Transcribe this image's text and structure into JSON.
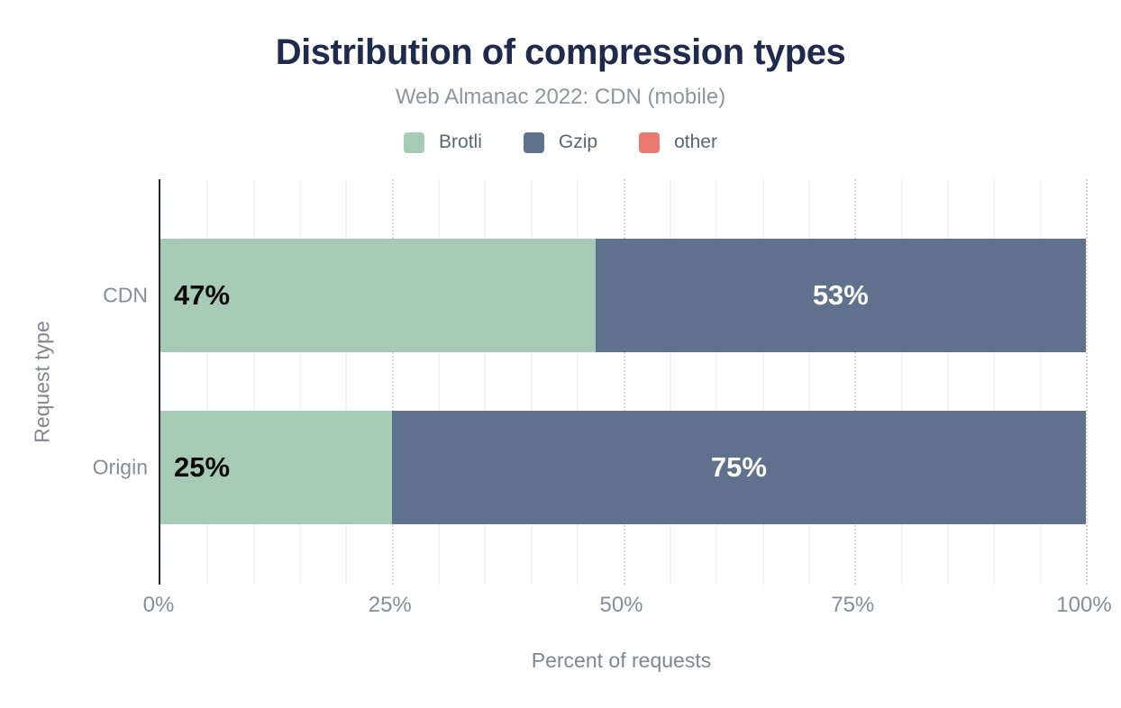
{
  "header": {
    "title": "Distribution of compression types",
    "subtitle": "Web Almanac 2022: CDN (mobile)"
  },
  "colors": {
    "title_text": "#1f2b4c",
    "subtitle_text": "#8e959c",
    "axis_line": "#23282f",
    "tick_label": "#868d96",
    "legend_label": "#5b6572",
    "grid_minor": "#f3f3f3",
    "grid_major": "#dcdcdc",
    "brotli": "#a7cab5",
    "gzip": "#5f718d",
    "other": "#ea7a70"
  },
  "chart_data": {
    "type": "bar",
    "orientation": "horizontal",
    "stacked": true,
    "title": "Distribution of compression types",
    "subtitle": "Web Almanac 2022: CDN (mobile)",
    "categories": [
      "CDN",
      "Origin"
    ],
    "series": [
      {
        "name": "Brotli",
        "color": "#a7cab5",
        "values": [
          47,
          25
        ],
        "labels": [
          "47%",
          "25%"
        ],
        "label_color": "#0b0b0b",
        "label_align": "left"
      },
      {
        "name": "Gzip",
        "color": "#5f718d",
        "values": [
          53,
          75
        ],
        "labels": [
          "53%",
          "75%"
        ],
        "label_color": "#ffffff",
        "label_align": "center"
      },
      {
        "name": "other",
        "color": "#ea7a70",
        "values": [
          0,
          0
        ],
        "labels": [
          "",
          ""
        ],
        "label_color": "#ffffff",
        "label_align": "center"
      }
    ],
    "xlabel": "Percent of requests",
    "ylabel": "Request type",
    "xlim": [
      0,
      100
    ],
    "x_ticks": [
      {
        "label": "0%",
        "value": 0
      },
      {
        "label": "25%",
        "value": 25
      },
      {
        "label": "50%",
        "value": 50
      },
      {
        "label": "75%",
        "value": 75
      },
      {
        "label": "100%",
        "value": 100
      }
    ],
    "grid": {
      "axis": "x",
      "minor_step": 5,
      "major_step": 25
    },
    "legend_position": "top"
  }
}
